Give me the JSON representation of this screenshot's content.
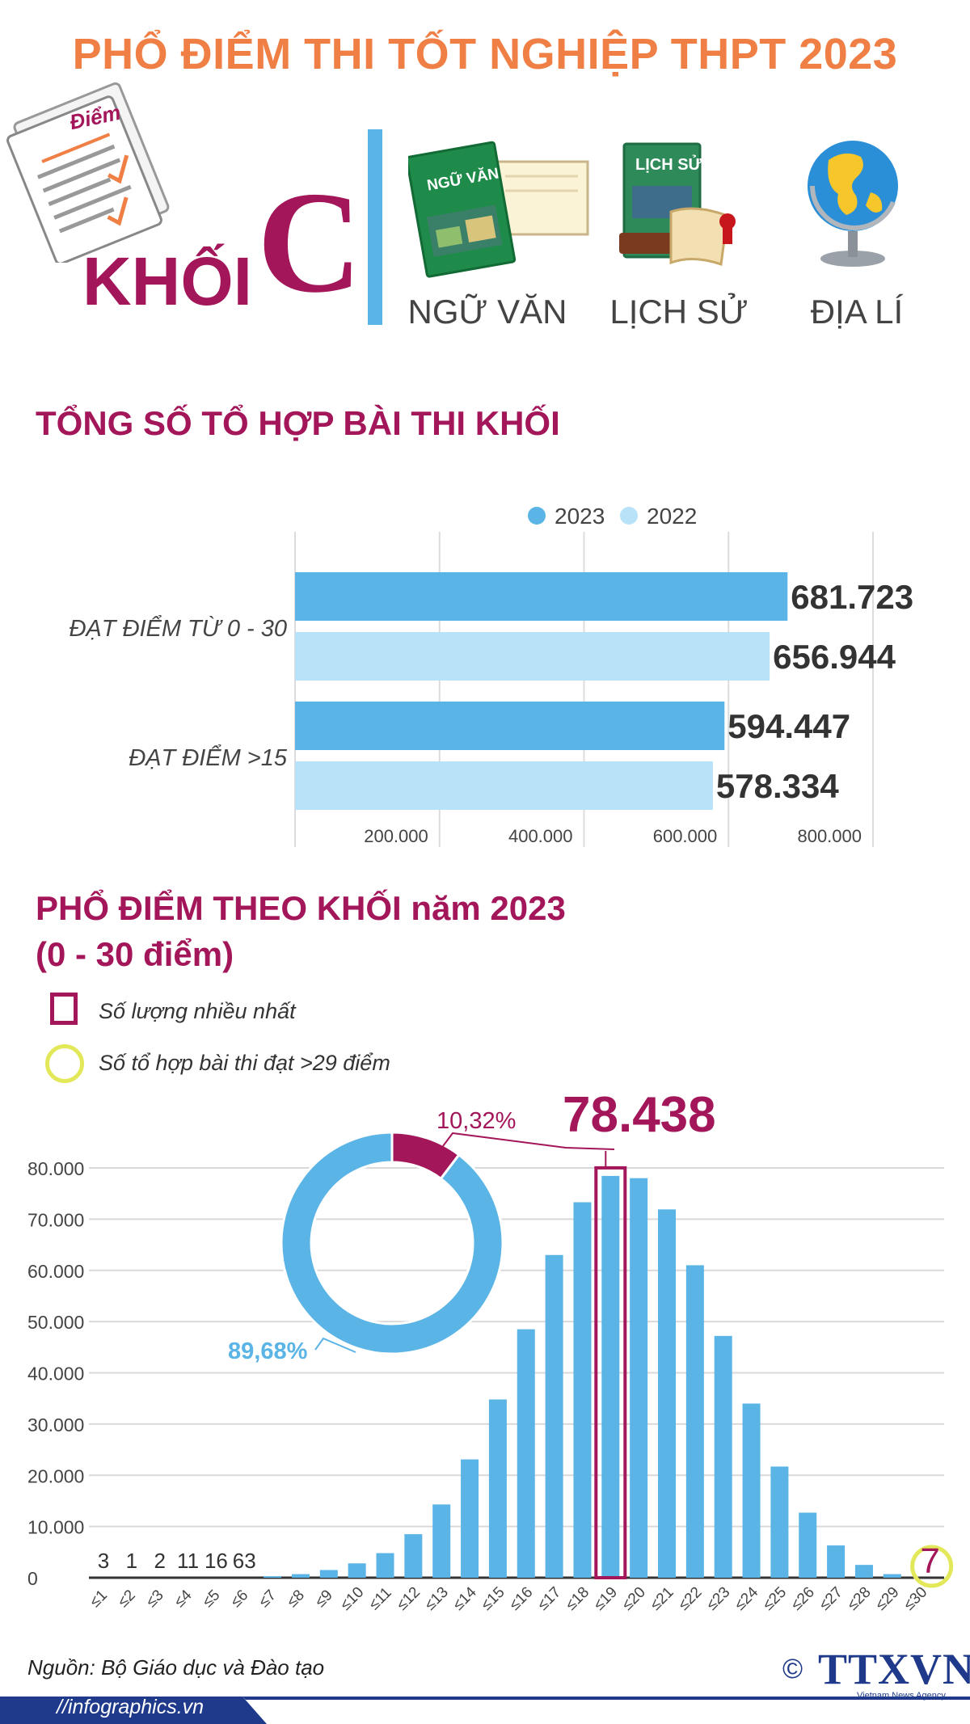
{
  "title": "PHỔ ĐIỂM THI TỐT NGHIỆP THPT 2023",
  "header": {
    "paper_label": "Điểm",
    "khoi_word": "KHỐI",
    "khoi_letter": "C",
    "subjects": [
      {
        "label": "NGỮ VĂN",
        "book_title": "NGỮ VĂN"
      },
      {
        "label": "LỊCH SỬ",
        "book_title": "LỊCH SỬ"
      },
      {
        "label": "ĐỊA LÍ"
      }
    ]
  },
  "section1": {
    "heading": "TỔNG SỐ TỔ HỢP BÀI THI KHỐI"
  },
  "section2": {
    "heading_line1": "PHỔ ĐIỂM THEO KHỐI năm 2023",
    "heading_line2": "(0 - 30 điểm)",
    "legend_max": "Số lượng nhiều nhất",
    "legend_29": "Số tổ hợp bài thi đạt >29 điểm",
    "peak_label": "78.438",
    "end_label": "7"
  },
  "footer": {
    "source": "Nguồn: Bộ Giáo dục và Đào tạo",
    "site": "//infographics.vn",
    "agency": "TTXVN",
    "agency_sub": "Vietnam News Agency",
    "copyright": "©"
  },
  "colors": {
    "title": "#ef7f45",
    "accent": "#a3165a",
    "bar_2023": "#5ab4e6",
    "bar_2022": "#b8e2f8",
    "highlight_circle": "#e3e85a"
  },
  "chart_data": [
    {
      "type": "bar",
      "orientation": "horizontal",
      "categories": [
        "ĐẠT ĐIỂM TỪ 0 - 30",
        "ĐẠT ĐIỂM >15"
      ],
      "series": [
        {
          "name": "2023",
          "values": [
            681723,
            594447
          ],
          "labels": [
            "681.723",
            "594.447"
          ]
        },
        {
          "name": "2022",
          "values": [
            656944,
            578334
          ],
          "labels": [
            "656.944",
            "578.334"
          ]
        }
      ],
      "xlim": [
        0,
        800000
      ],
      "xticks": [
        200000,
        400000,
        600000,
        800000
      ],
      "xtick_labels": [
        "200.000",
        "400.000",
        "600.000",
        "800.000"
      ],
      "grid": true,
      "legend_position": "top-center"
    },
    {
      "type": "bar",
      "categories": [
        "≤1",
        "≤2",
        "≤3",
        "≤4",
        "≤5",
        "≤6",
        "≤7",
        "≤8",
        "≤9",
        "≤10",
        "≤11",
        "≤12",
        "≤13",
        "≤14",
        "≤15",
        "≤16",
        "≤17",
        "≤18",
        "≤19",
        "≤20",
        "≤21",
        "≤22",
        "≤23",
        "≤24",
        "≤25",
        "≤26",
        "≤27",
        "≤28",
        "≤29",
        "≤30"
      ],
      "values": [
        3,
        1,
        2,
        11,
        16,
        63,
        300,
        700,
        1500,
        2800,
        4800,
        8500,
        14300,
        23100,
        34800,
        48500,
        63000,
        73300,
        78438,
        78000,
        71900,
        61000,
        47200,
        34000,
        21700,
        12700,
        6300,
        2500,
        700,
        7
      ],
      "small_value_labels": [
        "3",
        "1",
        "2",
        "11",
        "16",
        "63"
      ],
      "highlight_index": 18,
      "highlight_value": 78438,
      "yticks": [
        0,
        10000,
        20000,
        30000,
        40000,
        50000,
        60000,
        70000,
        80000
      ],
      "ytick_labels": [
        "0",
        "10.000",
        "20.000",
        "30.000",
        "40.000",
        "50.000",
        "60.000",
        "70.000",
        "80.000"
      ],
      "ylim": [
        0,
        80000
      ],
      "grid": true
    },
    {
      "type": "pie",
      "style": "donut",
      "slices": [
        {
          "label": "10,32%",
          "value": 10.32,
          "color": "#a3165a"
        },
        {
          "label": "89,68%",
          "value": 89.68,
          "color": "#5ab4e6"
        }
      ]
    }
  ]
}
